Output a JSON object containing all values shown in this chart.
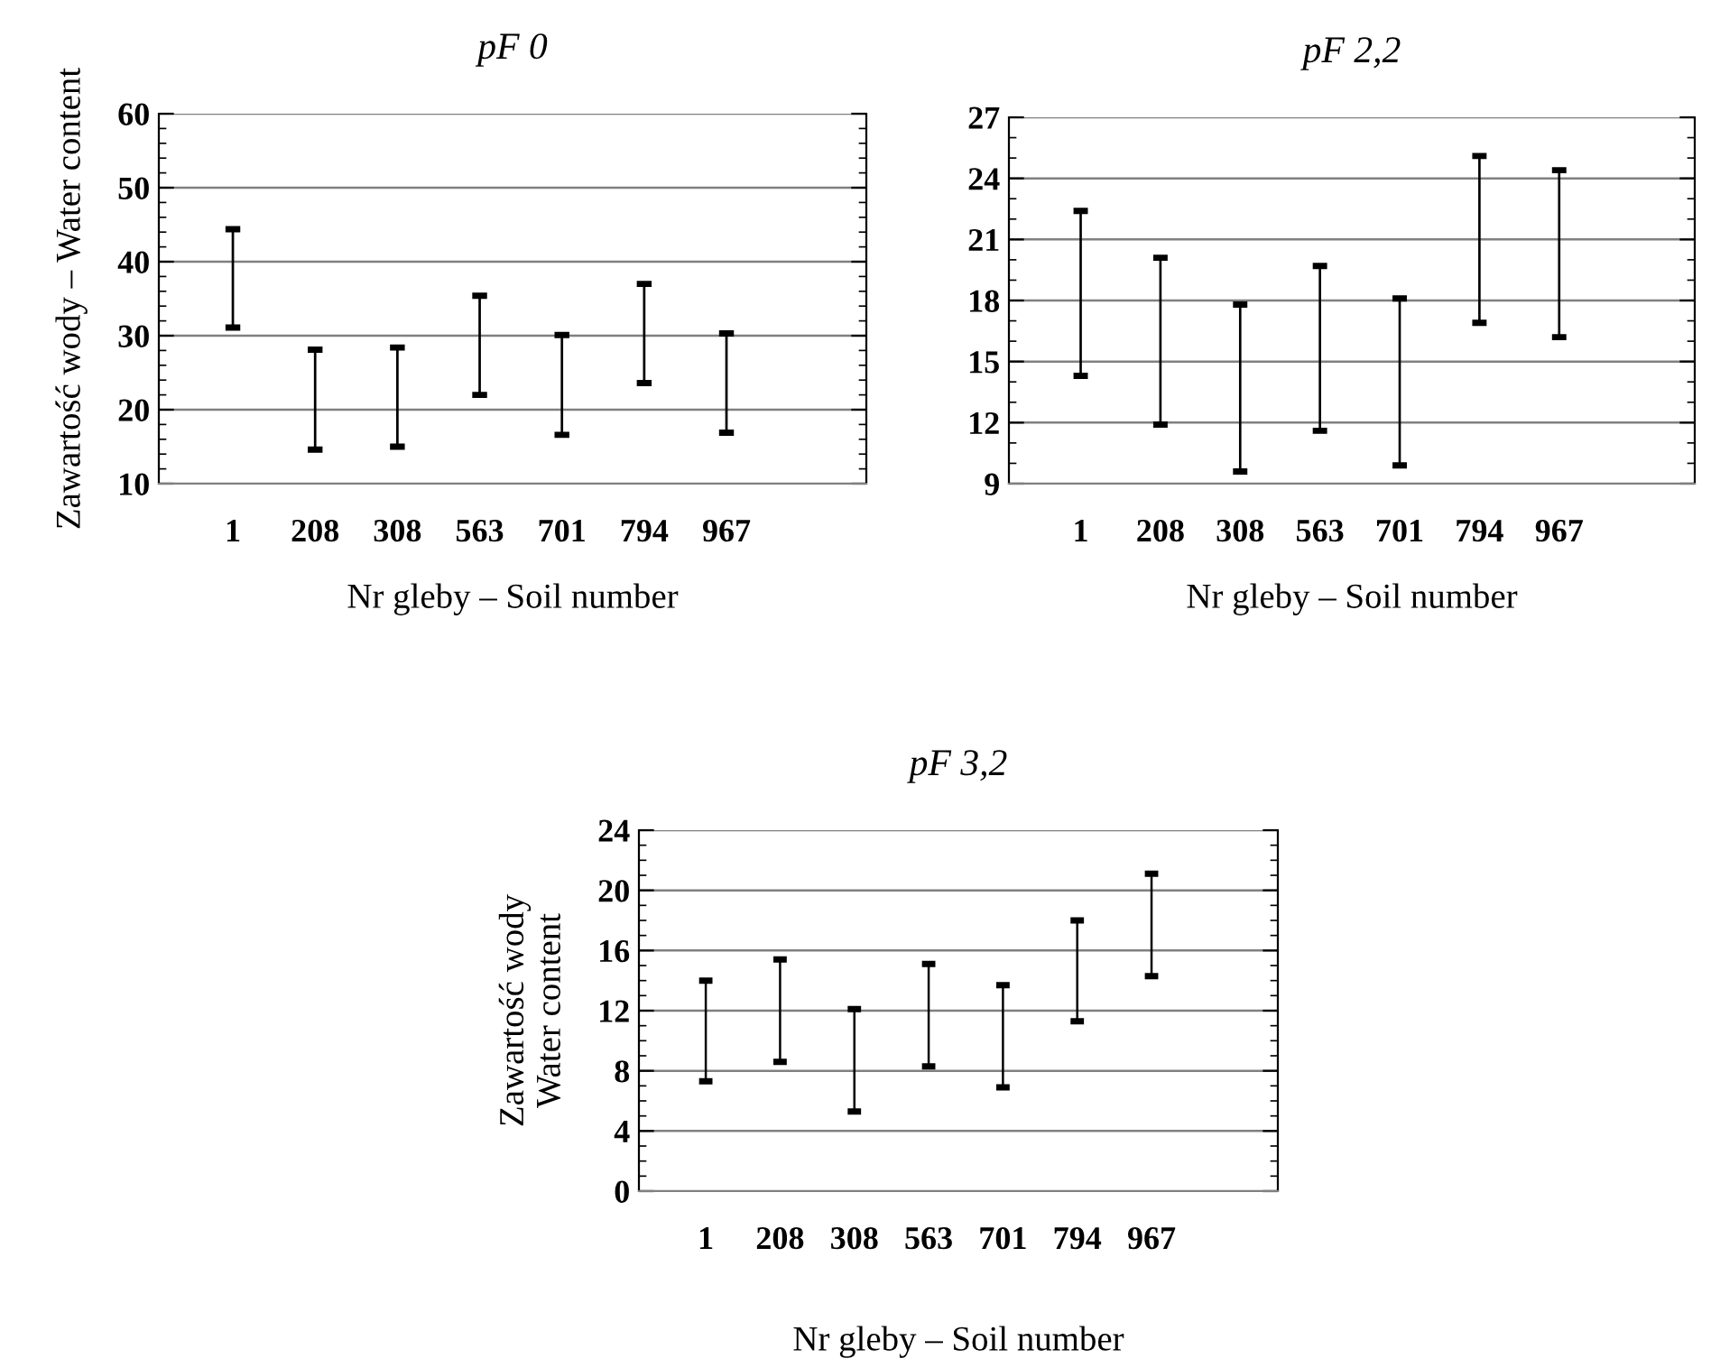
{
  "chart_data": [
    {
      "type": "bar",
      "title": "pF 0",
      "xlabel": "Nr gleby – Soil number",
      "ylabel": "Zawartość wody – Water content",
      "categories": [
        "1",
        "208",
        "308",
        "563",
        "701",
        "794",
        "967"
      ],
      "base": [
        31.1,
        14.6,
        15.0,
        22.0,
        16.6,
        23.6,
        16.9
      ],
      "values": [
        13.3,
        13.5,
        13.4,
        13.4,
        13.5,
        13.4,
        13.4
      ],
      "color": "#000000",
      "ylim": [
        10,
        60
      ],
      "yticks": [
        10,
        20,
        30,
        40,
        50,
        60
      ],
      "grid": "y"
    },
    {
      "type": "bar",
      "title": "pF 2,2",
      "xlabel": "Nr gleby – Soil number",
      "categories": [
        "1",
        "208",
        "308",
        "563",
        "701",
        "794",
        "967"
      ],
      "base": [
        14.3,
        11.9,
        9.6,
        11.6,
        9.9,
        16.9,
        16.2
      ],
      "values": [
        8.1,
        8.2,
        8.2,
        8.1,
        8.2,
        8.2,
        8.2
      ],
      "color": "#000000",
      "ylim": [
        9,
        27
      ],
      "yticks": [
        9,
        12,
        15,
        18,
        21,
        24,
        27
      ],
      "grid": "y"
    },
    {
      "type": "bar",
      "title": "pF 3,2",
      "xlabel": "Nr gleby – Soil number",
      "ylabel": "Zawartość wody\nWater content",
      "categories": [
        "1",
        "208",
        "308",
        "563",
        "701",
        "794",
        "967"
      ],
      "base": [
        7.3,
        8.6,
        5.3,
        8.3,
        6.9,
        11.3,
        14.3
      ],
      "values": [
        6.7,
        6.8,
        6.8,
        6.8,
        6.8,
        6.7,
        6.8
      ],
      "color": "#000000",
      "ylim": [
        0,
        24
      ],
      "yticks": [
        0,
        4,
        8,
        12,
        16,
        20,
        24
      ],
      "grid": "y"
    }
  ]
}
